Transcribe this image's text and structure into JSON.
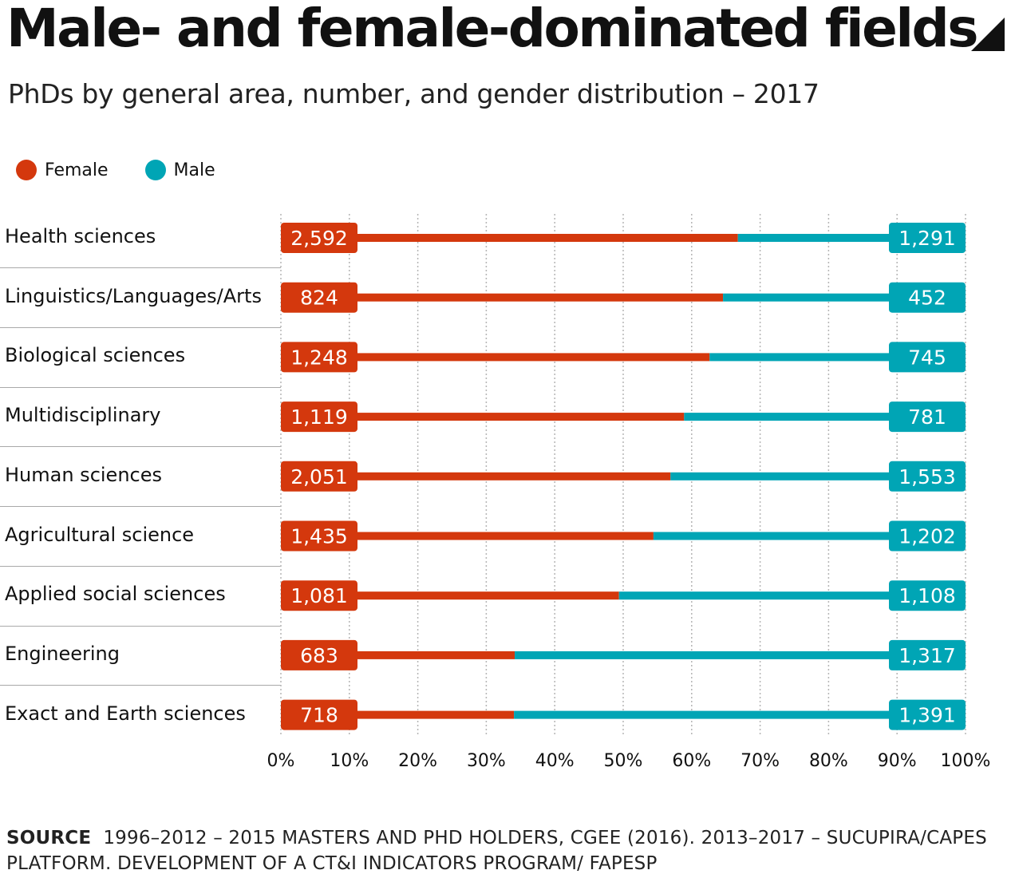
{
  "header": {
    "title": "Male- and female-dominated fields",
    "subtitle": "PhDs by general area, number, and gender distribution – 2017"
  },
  "legend": {
    "female": "Female",
    "male": "Male"
  },
  "colors": {
    "female": "#d4380d",
    "male": "#00a5b5",
    "grid": "#b5b5b5"
  },
  "chart_data": {
    "type": "bar",
    "orientation": "horizontal",
    "stacked": "100%",
    "categories": [
      "Health sciences",
      "Linguistics/Languages/Arts",
      "Biological sciences",
      "Multidisciplinary",
      "Human sciences",
      "Agricultural science",
      "Applied social sciences",
      "Engineering",
      "Exact and Earth sciences"
    ],
    "series": [
      {
        "name": "Female",
        "values": [
          2592,
          824,
          1248,
          1119,
          2051,
          1435,
          1081,
          683,
          718
        ],
        "labels": [
          "2,592",
          "824",
          "1,248",
          "1,119",
          "2,051",
          "1,435",
          "1,081",
          "683",
          "718"
        ]
      },
      {
        "name": "Male",
        "values": [
          1291,
          452,
          745,
          781,
          1553,
          1202,
          1108,
          1317,
          1391
        ],
        "labels": [
          "1,291",
          "452",
          "745",
          "781",
          "1,553",
          "1,202",
          "1,108",
          "1,317",
          "1,391"
        ]
      }
    ],
    "xlim": [
      0,
      100
    ],
    "xticks": [
      "0%",
      "10%",
      "20%",
      "30%",
      "40%",
      "50%",
      "60%",
      "70%",
      "80%",
      "90%",
      "100%"
    ],
    "grid": true,
    "legend_position": "top-left"
  },
  "source": {
    "label": "SOURCE",
    "text": "1996–2012 – 2015 MASTERS AND PHD HOLDERS, CGEE (2016). 2013–2017 – SUCUPIRA/CAPES PLATFORM. DEVELOPMENT OF A CT&I INDICATORS PROGRAM/ FAPESP"
  }
}
